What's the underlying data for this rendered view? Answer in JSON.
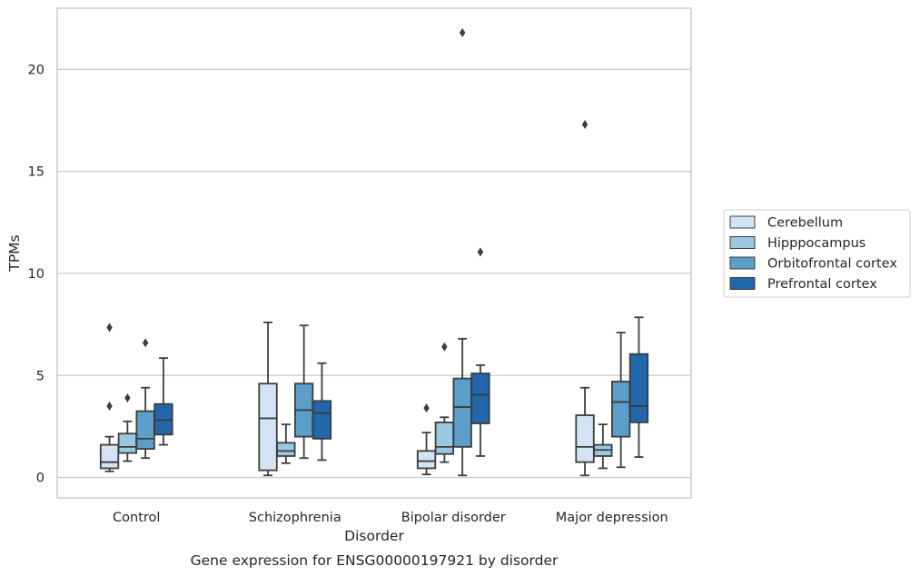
{
  "caption": "Gene expression for ENSG00000197921 by disorder",
  "chart_data": {
    "type": "box",
    "xlabel": "Disorder",
    "ylabel": "TPMs",
    "ylim": [
      -1,
      23
    ],
    "yticks": [
      0,
      5,
      10,
      15,
      20
    ],
    "grid": "horizontal",
    "legend_position": "right",
    "categories": [
      "Control",
      "Schizophrenia",
      "Bipolar disorder",
      "Major depression"
    ],
    "series": [
      {
        "name": "Cerebellum",
        "color": "#d2e3f3",
        "boxes": [
          {
            "whisker_low": 0.3,
            "q1": 0.45,
            "median": 0.75,
            "q3": 1.6,
            "whisker_high": 2.0,
            "outliers": [
              3.5,
              7.35
            ]
          },
          {
            "whisker_low": 0.1,
            "q1": 0.35,
            "median": 2.9,
            "q3": 4.6,
            "whisker_high": 7.6,
            "outliers": []
          },
          {
            "whisker_low": 0.15,
            "q1": 0.45,
            "median": 0.8,
            "q3": 1.3,
            "whisker_high": 2.2,
            "outliers": [
              3.4
            ]
          },
          {
            "whisker_low": 0.1,
            "q1": 0.75,
            "median": 1.5,
            "q3": 3.05,
            "whisker_high": 4.4,
            "outliers": [
              17.3
            ]
          }
        ]
      },
      {
        "name": "Hipppocampus",
        "color": "#9ac8e0",
        "boxes": [
          {
            "whisker_low": 0.8,
            "q1": 1.2,
            "median": 1.5,
            "q3": 2.15,
            "whisker_high": 2.75,
            "outliers": [
              3.9
            ]
          },
          {
            "whisker_low": 0.7,
            "q1": 1.05,
            "median": 1.3,
            "q3": 1.7,
            "whisker_high": 2.6,
            "outliers": []
          },
          {
            "whisker_low": 0.75,
            "q1": 1.15,
            "median": 1.5,
            "q3": 2.7,
            "whisker_high": 2.95,
            "outliers": [
              6.4
            ]
          },
          {
            "whisker_low": 0.45,
            "q1": 1.05,
            "median": 1.35,
            "q3": 1.6,
            "whisker_high": 2.6,
            "outliers": []
          }
        ]
      },
      {
        "name": "Orbitofrontal cortex",
        "color": "#5a9ec9",
        "boxes": [
          {
            "whisker_low": 0.95,
            "q1": 1.4,
            "median": 1.9,
            "q3": 3.25,
            "whisker_high": 4.4,
            "outliers": [
              6.6
            ]
          },
          {
            "whisker_low": 0.95,
            "q1": 2.0,
            "median": 3.3,
            "q3": 4.6,
            "whisker_high": 7.45,
            "outliers": []
          },
          {
            "whisker_low": 0.1,
            "q1": 1.5,
            "median": 3.45,
            "q3": 4.85,
            "whisker_high": 6.8,
            "outliers": [
              21.8
            ]
          },
          {
            "whisker_low": 0.5,
            "q1": 2.0,
            "median": 3.7,
            "q3": 4.7,
            "whisker_high": 7.1,
            "outliers": []
          }
        ]
      },
      {
        "name": "Prefrontal cortex",
        "color": "#2266ac",
        "boxes": [
          {
            "whisker_low": 1.6,
            "q1": 2.1,
            "median": 2.8,
            "q3": 3.6,
            "whisker_high": 5.85,
            "outliers": []
          },
          {
            "whisker_low": 0.85,
            "q1": 1.9,
            "median": 3.15,
            "q3": 3.75,
            "whisker_high": 5.6,
            "outliers": []
          },
          {
            "whisker_low": 1.05,
            "q1": 2.65,
            "median": 4.05,
            "q3": 5.1,
            "whisker_high": 5.5,
            "outliers": [
              11.05
            ]
          },
          {
            "whisker_low": 1.0,
            "q1": 2.7,
            "median": 3.5,
            "q3": 6.05,
            "whisker_high": 7.85,
            "outliers": []
          }
        ]
      }
    ]
  }
}
